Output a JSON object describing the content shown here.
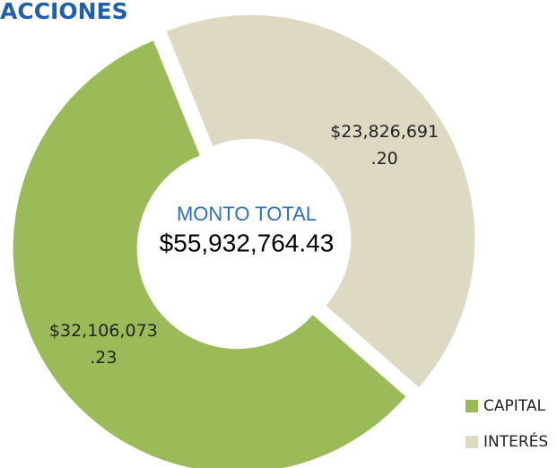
{
  "chart_data": {
    "type": "pie",
    "title": "ACCIONES",
    "center_title": "MONTO TOTAL",
    "center_value": "$55,932,764.43",
    "categories": [
      "CAPITAL",
      "INTERÉS"
    ],
    "values": [
      32106073.23,
      23826691.2
    ],
    "value_labels": [
      "$32,106,073.23",
      "$23,826,691.20"
    ],
    "colors": [
      "#9bbb59",
      "#ddd9c3"
    ],
    "donut": true,
    "legend": "bottom-right"
  }
}
